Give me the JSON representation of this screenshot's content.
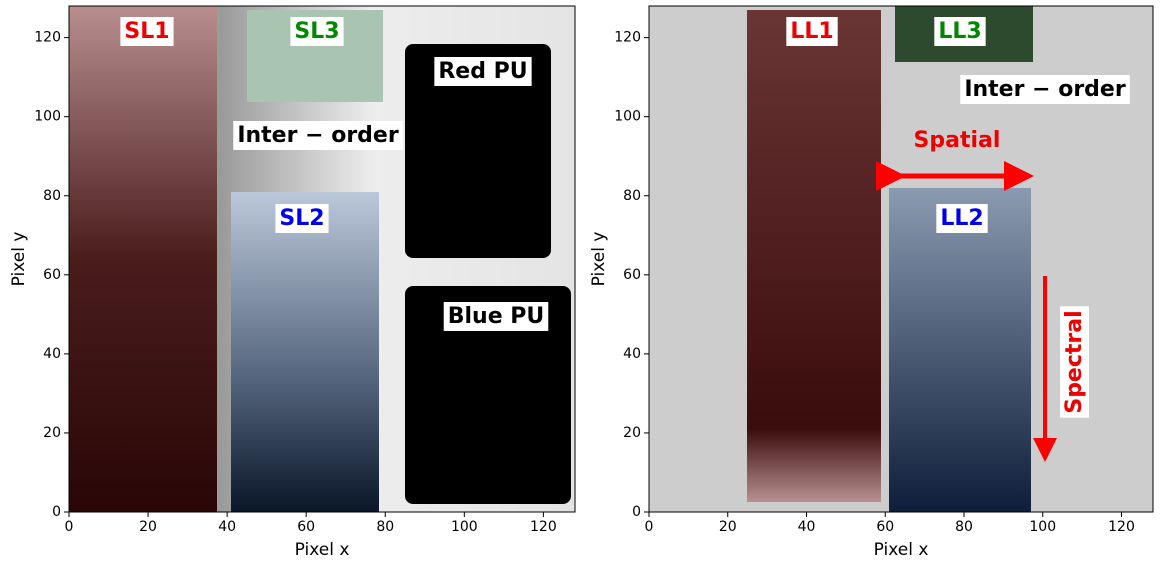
{
  "chart_data": [
    {
      "type": "image",
      "xlabel": "Pixel x",
      "ylabel": "Pixel y",
      "xlim": [
        0,
        128
      ],
      "ylim": [
        0,
        128
      ],
      "xticks": [
        0,
        20,
        40,
        60,
        80,
        100,
        120
      ],
      "yticks": [
        0,
        20,
        40,
        60,
        80,
        100,
        120
      ],
      "annotations": [
        "SL1",
        "SL3",
        "Inter − order",
        "Red PU",
        "SL2",
        "Blue PU"
      ]
    },
    {
      "type": "image",
      "xlabel": "Pixel x",
      "ylabel": "Pixel y",
      "xlim": [
        0,
        128
      ],
      "ylim": [
        0,
        128
      ],
      "xticks": [
        0,
        20,
        40,
        60,
        80,
        100,
        120
      ],
      "yticks": [
        0,
        20,
        40,
        60,
        80,
        100,
        120
      ],
      "annotations": [
        "LL1",
        "LL3",
        "Inter − order",
        "Spatial",
        "LL2",
        "Spectral"
      ]
    }
  ]
}
